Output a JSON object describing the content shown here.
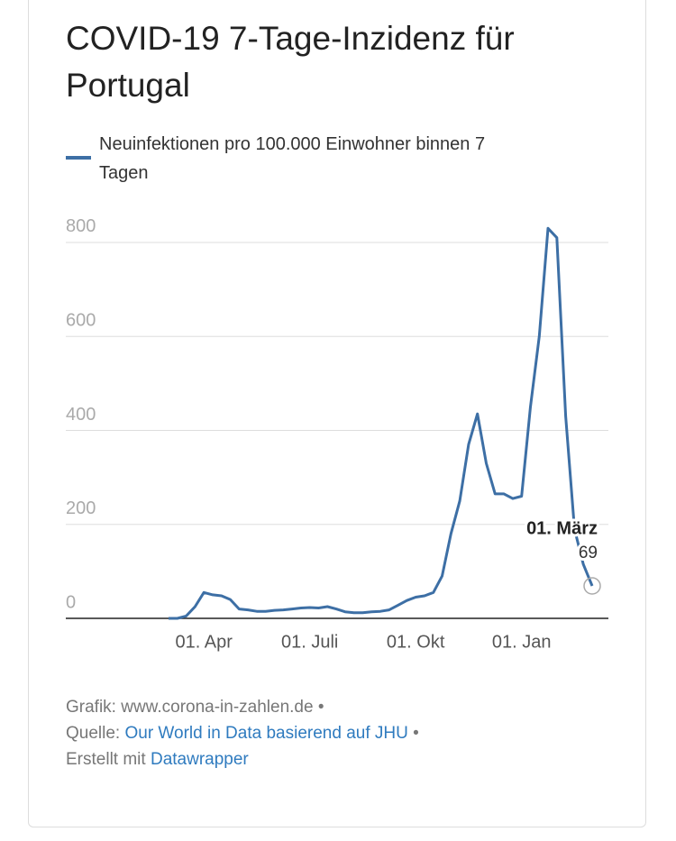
{
  "chart_data": {
    "type": "line",
    "title": "COVID-19 7-Tage-Inzidenz für Portugal",
    "categories": [
      null,
      null,
      null,
      null,
      "01. Apr",
      null,
      null,
      null,
      null,
      null,
      null,
      null,
      null,
      null,
      null,
      null,
      "01. Juli",
      null,
      null,
      null,
      null,
      null,
      null,
      null,
      null,
      null,
      null,
      null,
      "01. Okt",
      null,
      null,
      null,
      null,
      null,
      null,
      null,
      null,
      null,
      null,
      null,
      "01. Jan",
      null,
      null,
      null,
      null,
      null,
      null,
      null,
      null
    ],
    "series": [
      {
        "name": "Neuinfektionen pro 100.000 Einwohner binnen 7 Tagen",
        "color": "#3d6fa5",
        "values": [
          0,
          0,
          5,
          25,
          55,
          50,
          48,
          40,
          20,
          18,
          15,
          15,
          17,
          18,
          20,
          22,
          23,
          22,
          25,
          20,
          14,
          12,
          12,
          14,
          15,
          18,
          28,
          38,
          45,
          48,
          55,
          90,
          180,
          250,
          370,
          435,
          330,
          265,
          265,
          255,
          260,
          450,
          600,
          830,
          810,
          430,
          190,
          115,
          69
        ]
      }
    ],
    "annotation": "01. März",
    "ylim": [
      0,
      900
    ],
    "yticks": [
      0,
      200,
      400,
      600,
      800
    ],
    "grid": true,
    "footer": {
      "credit": "Grafik: www.corona-in-zahlen.de •",
      "source_prefix": "Quelle:",
      "source_link": "Our World in Data basierend auf JHU",
      "source_suffix": "•",
      "made_prefix": "Erstellt mit",
      "made_link": "Datawrapper"
    }
  }
}
